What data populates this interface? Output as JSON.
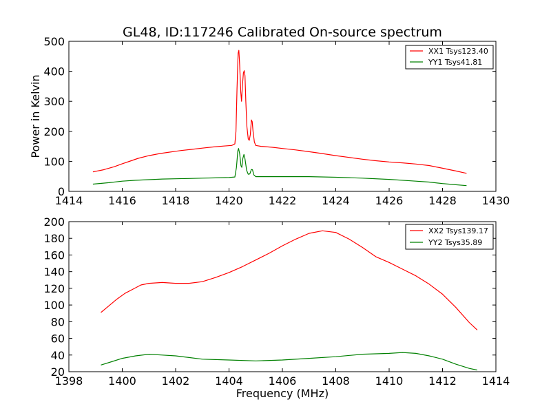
{
  "title": "GL48, ID:117246 Calibrated On-source spectrum",
  "chart_data": [
    {
      "type": "line",
      "title": "GL48, ID:117246 Calibrated On-source spectrum",
      "xlabel": "",
      "ylabel": "Power in Kelvin",
      "xlim": [
        1414,
        1430
      ],
      "ylim": [
        0,
        500
      ],
      "xticks": [
        1414,
        1416,
        1418,
        1420,
        1422,
        1424,
        1426,
        1428,
        1430
      ],
      "yticks": [
        0,
        100,
        200,
        300,
        400,
        500
      ],
      "legend_position": "top-right",
      "grid": false,
      "series": [
        {
          "name": "XX1 Tsys123.40",
          "color": "#ff0000",
          "points": [
            [
              1414.9,
              65
            ],
            [
              1415.3,
              72
            ],
            [
              1415.7,
              82
            ],
            [
              1416.0,
              92
            ],
            [
              1416.3,
              101
            ],
            [
              1416.6,
              110
            ],
            [
              1417.0,
              119
            ],
            [
              1417.4,
              126
            ],
            [
              1417.8,
              131
            ],
            [
              1418.2,
              136
            ],
            [
              1418.6,
              140
            ],
            [
              1419.0,
              144
            ],
            [
              1419.4,
              148
            ],
            [
              1419.8,
              151
            ],
            [
              1420.1,
              153
            ],
            [
              1420.22,
              158
            ],
            [
              1420.26,
              200
            ],
            [
              1420.3,
              340
            ],
            [
              1420.34,
              460
            ],
            [
              1420.37,
              470
            ],
            [
              1420.4,
              420
            ],
            [
              1420.44,
              330
            ],
            [
              1420.47,
              300
            ],
            [
              1420.5,
              350
            ],
            [
              1420.54,
              395
            ],
            [
              1420.57,
              402
            ],
            [
              1420.6,
              385
            ],
            [
              1420.63,
              300
            ],
            [
              1420.67,
              215
            ],
            [
              1420.72,
              175
            ],
            [
              1420.76,
              170
            ],
            [
              1420.8,
              190
            ],
            [
              1420.84,
              238
            ],
            [
              1420.87,
              232
            ],
            [
              1420.9,
              200
            ],
            [
              1420.95,
              165
            ],
            [
              1421.0,
              153
            ],
            [
              1421.2,
              150
            ],
            [
              1421.6,
              147
            ],
            [
              1422.0,
              143
            ],
            [
              1422.5,
              138
            ],
            [
              1423.0,
              132
            ],
            [
              1423.5,
              126
            ],
            [
              1424.0,
              119
            ],
            [
              1424.5,
              113
            ],
            [
              1425.0,
              107
            ],
            [
              1425.5,
              102
            ],
            [
              1426.0,
              98
            ],
            [
              1426.5,
              95
            ],
            [
              1427.0,
              91
            ],
            [
              1427.5,
              86
            ],
            [
              1428.0,
              77
            ],
            [
              1428.5,
              68
            ],
            [
              1428.9,
              60
            ]
          ]
        },
        {
          "name": "YY1 Tsys41.81",
          "color": "#008000",
          "points": [
            [
              1414.9,
              24
            ],
            [
              1415.5,
              29
            ],
            [
              1416.0,
              34
            ],
            [
              1416.5,
              37
            ],
            [
              1417.0,
              39
            ],
            [
              1417.5,
              41
            ],
            [
              1418.0,
              42
            ],
            [
              1418.5,
              43
            ],
            [
              1419.0,
              44
            ],
            [
              1419.5,
              45
            ],
            [
              1420.0,
              46
            ],
            [
              1420.22,
              48
            ],
            [
              1420.28,
              80
            ],
            [
              1420.33,
              135
            ],
            [
              1420.36,
              143
            ],
            [
              1420.4,
              125
            ],
            [
              1420.45,
              85
            ],
            [
              1420.48,
              80
            ],
            [
              1420.52,
              110
            ],
            [
              1420.56,
              123
            ],
            [
              1420.6,
              108
            ],
            [
              1420.66,
              70
            ],
            [
              1420.72,
              57
            ],
            [
              1420.78,
              58
            ],
            [
              1420.84,
              73
            ],
            [
              1420.88,
              72
            ],
            [
              1420.93,
              55
            ],
            [
              1421.0,
              49
            ],
            [
              1421.5,
              49
            ],
            [
              1422.0,
              49
            ],
            [
              1423.0,
              49
            ],
            [
              1424.0,
              47
            ],
            [
              1425.0,
              44
            ],
            [
              1426.0,
              40
            ],
            [
              1427.0,
              34
            ],
            [
              1427.5,
              31
            ],
            [
              1428.0,
              26
            ],
            [
              1428.5,
              22
            ],
            [
              1428.9,
              19
            ]
          ]
        }
      ]
    },
    {
      "type": "line",
      "title": "",
      "xlabel": "Frequency (MHz)",
      "ylabel": "",
      "xlim": [
        1398,
        1414
      ],
      "ylim": [
        20,
        200
      ],
      "xticks": [
        1398,
        1400,
        1402,
        1404,
        1406,
        1408,
        1410,
        1412,
        1414
      ],
      "yticks": [
        20,
        40,
        60,
        80,
        100,
        120,
        140,
        160,
        180,
        200
      ],
      "legend_position": "top-right",
      "grid": false,
      "series": [
        {
          "name": "XX2 Tsys139.17",
          "color": "#ff0000",
          "points": [
            [
              1399.2,
              91
            ],
            [
              1399.5,
              99
            ],
            [
              1399.8,
              107
            ],
            [
              1400.1,
              114
            ],
            [
              1400.4,
              119
            ],
            [
              1400.7,
              124
            ],
            [
              1401.0,
              126
            ],
            [
              1401.5,
              127
            ],
            [
              1402.0,
              126
            ],
            [
              1402.5,
              126
            ],
            [
              1403.0,
              128
            ],
            [
              1403.5,
              133
            ],
            [
              1404.0,
              139
            ],
            [
              1404.5,
              146
            ],
            [
              1405.0,
              154
            ],
            [
              1405.5,
              162
            ],
            [
              1406.0,
              171
            ],
            [
              1406.5,
              179
            ],
            [
              1407.0,
              186
            ],
            [
              1407.5,
              189
            ],
            [
              1408.0,
              187
            ],
            [
              1408.5,
              179
            ],
            [
              1409.0,
              169
            ],
            [
              1409.5,
              158
            ],
            [
              1410.0,
              151
            ],
            [
              1410.5,
              143
            ],
            [
              1411.0,
              135
            ],
            [
              1411.5,
              125
            ],
            [
              1412.0,
              113
            ],
            [
              1412.5,
              97
            ],
            [
              1413.0,
              79
            ],
            [
              1413.3,
              70
            ]
          ]
        },
        {
          "name": "YY2 Tsys35.89",
          "color": "#008000",
          "points": [
            [
              1399.2,
              28
            ],
            [
              1399.6,
              32
            ],
            [
              1400.0,
              36
            ],
            [
              1400.5,
              39
            ],
            [
              1401.0,
              41
            ],
            [
              1401.5,
              40
            ],
            [
              1402.0,
              39
            ],
            [
              1402.5,
              37
            ],
            [
              1403.0,
              35
            ],
            [
              1404.0,
              34
            ],
            [
              1405.0,
              33
            ],
            [
              1406.0,
              34
            ],
            [
              1407.0,
              36
            ],
            [
              1408.0,
              38
            ],
            [
              1409.0,
              41
            ],
            [
              1410.0,
              42
            ],
            [
              1410.5,
              43
            ],
            [
              1411.0,
              42
            ],
            [
              1411.5,
              39
            ],
            [
              1412.0,
              35
            ],
            [
              1412.5,
              29
            ],
            [
              1413.0,
              24
            ],
            [
              1413.3,
              22
            ]
          ]
        }
      ]
    }
  ]
}
